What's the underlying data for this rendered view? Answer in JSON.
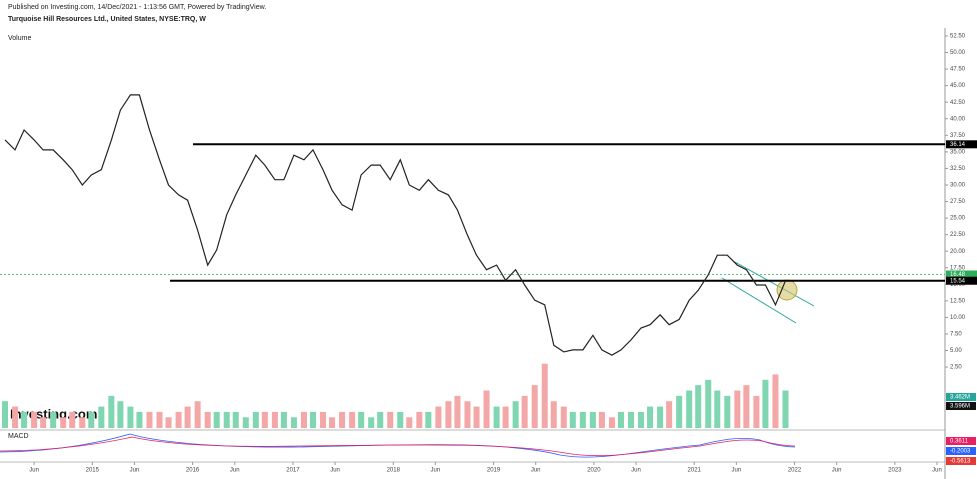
{
  "header": {
    "published": "Published on Investing.com, 14/Dec/2021 - 1:13:56 GMT, Powered by TradingView.",
    "instrument": "Turquoise Hill Resources Ltd., United States, NYSE:TRQ, W",
    "volume_title": "Volume",
    "logo": "Investing.com",
    "macd_title": "MACD",
    "volume_labels": [
      "3.462M",
      "3.596M"
    ],
    "macd_labels": [
      "0.3611",
      "-0.2003",
      "-0.5613"
    ]
  },
  "chart_data": {
    "type": "line",
    "color": "#222222",
    "up_color": "#7fd6b0",
    "down_color": "#f4a7a7",
    "x": [
      2014.13,
      2014.23,
      2014.32,
      2014.42,
      2014.51,
      2014.61,
      2014.71,
      2014.8,
      2014.9,
      2014.99,
      2015.09,
      2015.19,
      2015.28,
      2015.38,
      2015.47,
      2015.57,
      2015.67,
      2015.76,
      2015.86,
      2015.95,
      2016.05,
      2016.15,
      2016.24,
      2016.34,
      2016.43,
      2016.53,
      2016.63,
      2016.72,
      2016.82,
      2016.91,
      2017.01,
      2017.11,
      2017.2,
      2017.3,
      2017.39,
      2017.49,
      2017.59,
      2017.68,
      2017.78,
      2017.87,
      2017.97,
      2018.07,
      2018.16,
      2018.26,
      2018.35,
      2018.45,
      2018.55,
      2018.64,
      2018.74,
      2018.83,
      2018.93,
      2019.03,
      2019.12,
      2019.22,
      2019.31,
      2019.41,
      2019.51,
      2019.6,
      2019.7,
      2019.79,
      2019.89,
      2019.99,
      2020.08,
      2020.18,
      2020.27,
      2020.37,
      2020.47,
      2020.56,
      2020.66,
      2020.75,
      2020.85,
      2020.95,
      2021.04,
      2021.14,
      2021.23,
      2021.33,
      2021.43,
      2021.52,
      2021.62,
      2021.71,
      2021.81,
      2021.91
    ],
    "values": [
      36.8,
      35.3,
      38.3,
      36.8,
      35.3,
      35.3,
      33.8,
      32.3,
      30.0,
      31.5,
      32.3,
      36.8,
      41.3,
      43.6,
      43.6,
      38.3,
      33.8,
      30.0,
      28.5,
      27.7,
      23.2,
      17.9,
      20.2,
      25.5,
      28.5,
      31.5,
      34.5,
      33.0,
      30.8,
      30.8,
      34.5,
      33.8,
      35.3,
      32.3,
      29.2,
      27.0,
      26.2,
      31.5,
      33.0,
      33.0,
      30.8,
      33.8,
      30.0,
      29.2,
      30.8,
      29.2,
      28.5,
      26.2,
      22.4,
      19.4,
      17.2,
      17.9,
      15.6,
      17.2,
      14.9,
      12.6,
      11.9,
      5.8,
      4.8,
      5.1,
      5.1,
      7.3,
      5.1,
      4.3,
      5.1,
      6.6,
      8.4,
      8.9,
      10.4,
      8.9,
      9.7,
      12.6,
      14.1,
      16.4,
      19.4,
      19.4,
      17.9,
      17.2,
      14.9,
      14.9,
      11.9,
      15.54
    ],
    "volume": [
      5,
      4,
      3,
      3,
      2,
      3,
      2,
      3,
      2,
      3,
      4,
      6,
      5,
      4,
      3,
      3,
      3,
      2,
      3,
      4,
      5,
      3,
      3,
      3,
      3,
      2,
      3,
      3,
      3,
      3,
      2,
      3,
      3,
      3,
      2,
      3,
      3,
      3,
      2,
      3,
      3,
      3,
      2,
      3,
      3,
      4,
      5,
      6,
      5,
      4,
      7,
      4,
      4,
      5,
      6,
      8,
      12,
      5,
      4,
      3,
      3,
      3,
      3,
      2,
      3,
      3,
      3,
      4,
      4,
      5,
      6,
      7,
      8,
      9,
      7,
      6,
      7,
      8,
      6,
      9,
      10,
      7
    ],
    "volume_max": 14,
    "levels": [
      {
        "value": 36.14,
        "color": "#000000"
      },
      {
        "value": 16.48,
        "color": "#2eae5a"
      },
      {
        "value": 15.54,
        "color": "#000000"
      }
    ],
    "xlim": [
      2014.08,
      2023.5
    ],
    "ylim": [
      -7.0,
      53.4
    ],
    "xticks": [
      {
        "value": 2014.42,
        "label": "Jun"
      },
      2015,
      {
        "value": 2015.42,
        "label": "Jun"
      },
      2016,
      {
        "value": 2016.42,
        "label": "Jun"
      },
      2017,
      {
        "value": 2017.42,
        "label": "Jun"
      },
      2018,
      {
        "value": 2018.42,
        "label": "Jun"
      },
      2019,
      {
        "value": 2019.42,
        "label": "Jun"
      },
      2020,
      {
        "value": 2020.42,
        "label": "Jun"
      },
      2021,
      {
        "value": 2021.42,
        "label": "Jun"
      },
      2022,
      {
        "value": 2022.42,
        "label": "Jun"
      },
      2023,
      {
        "value": 2023.42,
        "label": "Jun"
      }
    ],
    "yticks": [
      {
        "value": 52.5,
        "label": "52.50"
      },
      {
        "value": 50,
        "label": "50.00"
      },
      {
        "value": 47.5,
        "label": "47.50"
      },
      {
        "value": 45,
        "label": "45.00"
      },
      {
        "value": 42.5,
        "label": "42.50"
      },
      {
        "value": 40,
        "label": "40.00"
      },
      {
        "value": 37.5,
        "label": "37.50"
      },
      {
        "value": 35,
        "label": "35.00"
      },
      {
        "value": 32.5,
        "label": "32.50"
      },
      {
        "value": 30,
        "label": "30.00"
      },
      {
        "value": 27.5,
        "label": "27.50"
      },
      {
        "value": 25,
        "label": "25.00"
      },
      {
        "value": 22.5,
        "label": "22.50"
      },
      {
        "value": 20,
        "label": "20.00"
      },
      {
        "value": 17.5,
        "label": "17.50"
      },
      {
        "value": 15,
        "label": "15.00"
      },
      {
        "value": 12.5,
        "label": "12.50"
      },
      {
        "value": 10,
        "label": "10.00"
      },
      {
        "value": 7.5,
        "label": "7.50"
      },
      {
        "value": 5,
        "label": "5.00"
      },
      {
        "value": 2.5,
        "label": "2.50"
      }
    ]
  }
}
